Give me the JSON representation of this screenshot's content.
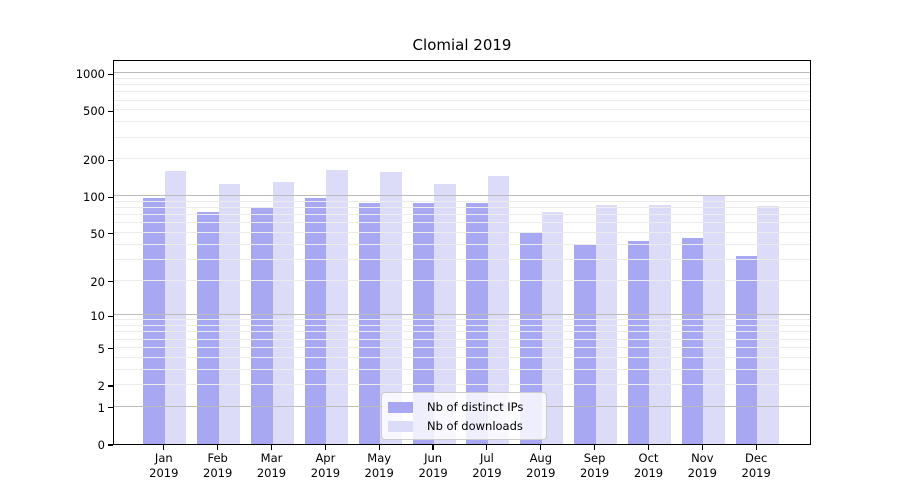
{
  "title": "Clomial 2019",
  "chart_data": {
    "type": "bar",
    "title": "Clomial 2019",
    "categories": [
      "Jan",
      "Feb",
      "Mar",
      "Apr",
      "May",
      "Jun",
      "Jul",
      "Aug",
      "Sep",
      "Oct",
      "Nov",
      "Dec"
    ],
    "year": "2019",
    "series": [
      {
        "name": "Nb of distinct IPs",
        "color": "#a8a8f2",
        "values": [
          97,
          74,
          81,
          96,
          88,
          88,
          88,
          51,
          40,
          43,
          45,
          32
        ]
      },
      {
        "name": "Nb of downloads",
        "color": "#dcdcf8",
        "values": [
          160,
          125,
          130,
          164,
          158,
          125,
          146,
          75,
          85,
          85,
          101,
          84
        ]
      }
    ],
    "xlabel": "",
    "ylabel": "",
    "yscale": "log1p",
    "yticks": [
      0,
      1,
      2,
      5,
      10,
      20,
      50,
      100,
      200,
      500,
      1000
    ],
    "ylim": [
      0,
      1300
    ],
    "grid": true,
    "legend_position": "lower-center"
  }
}
